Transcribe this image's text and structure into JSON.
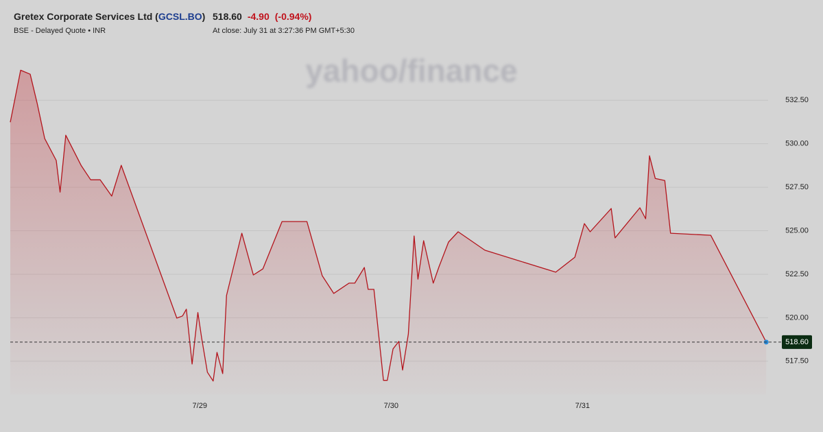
{
  "header": {
    "title_prefix": "Gretex Corporate Services Ltd (",
    "symbol": "GCSL.BO",
    "title_suffix": ")",
    "subtitle": "BSE - Delayed Quote • INR",
    "change": "-4.90",
    "change_pct": "(-0.94%)",
    "close_time": "At close: July 31 at 3:27:36 PM GMT+5:30",
    "watermark": "yahoo/finance"
  },
  "chart_data": {
    "type": "line",
    "color": "#b3141c",
    "grid": true,
    "last_price": {
      "value": 518.6,
      "label": "518.60"
    },
    "x": [
      28.01,
      28.064,
      28.114,
      28.15,
      28.19,
      28.25,
      28.27,
      28.3,
      28.38,
      28.43,
      28.48,
      28.54,
      28.59,
      28.88,
      28.91,
      28.93,
      28.96,
      28.99,
      29.01,
      29.04,
      29.07,
      29.09,
      29.12,
      29.14,
      29.22,
      29.28,
      29.33,
      29.43,
      29.56,
      29.64,
      29.7,
      29.78,
      29.81,
      29.86,
      29.88,
      29.91,
      29.96,
      29.98,
      30.01,
      30.04,
      30.06,
      30.09,
      30.12,
      30.14,
      30.17,
      30.22,
      30.25,
      30.3,
      30.35,
      30.49,
      30.86,
      30.96,
      31.01,
      31.04,
      31.15,
      31.17,
      31.3,
      31.33,
      31.35,
      31.38,
      31.43,
      31.46,
      31.67,
      31.96
    ],
    "values": [
      531.24,
      534.23,
      534.0,
      532.34,
      530.3,
      529.04,
      527.22,
      530.49,
      528.76,
      527.93,
      527.93,
      526.99,
      528.76,
      519.98,
      520.1,
      520.49,
      517.34,
      520.3,
      518.84,
      516.87,
      516.36,
      518.01,
      516.79,
      521.28,
      524.86,
      522.46,
      522.81,
      525.53,
      525.53,
      522.42,
      521.4,
      521.99,
      521.99,
      522.89,
      521.63,
      521.63,
      516.4,
      516.4,
      518.21,
      518.64,
      516.99,
      519.07,
      524.7,
      522.22,
      524.43,
      521.99,
      522.93,
      524.35,
      524.94,
      523.88,
      522.62,
      523.48,
      525.41,
      524.94,
      526.28,
      524.59,
      526.32,
      525.69,
      529.31,
      528.01,
      527.89,
      524.86,
      524.74,
      518.6
    ],
    "xlim": [
      28.01,
      31.97
    ],
    "xticks": [
      {
        "value": 29,
        "label": "7/29"
      },
      {
        "value": 30,
        "label": "7/30"
      },
      {
        "value": 31,
        "label": "7/31"
      }
    ],
    "ylim": [
      515.6,
      535.9
    ],
    "yticks": [
      {
        "value": 517.5,
        "label": "517.50"
      },
      {
        "value": 520,
        "label": "520.00"
      },
      {
        "value": 522.5,
        "label": "522.50"
      },
      {
        "value": 525,
        "label": "525.00"
      },
      {
        "value": 527.5,
        "label": "527.50"
      },
      {
        "value": 530,
        "label": "530.00"
      },
      {
        "value": 532.5,
        "label": "532.50"
      }
    ]
  }
}
